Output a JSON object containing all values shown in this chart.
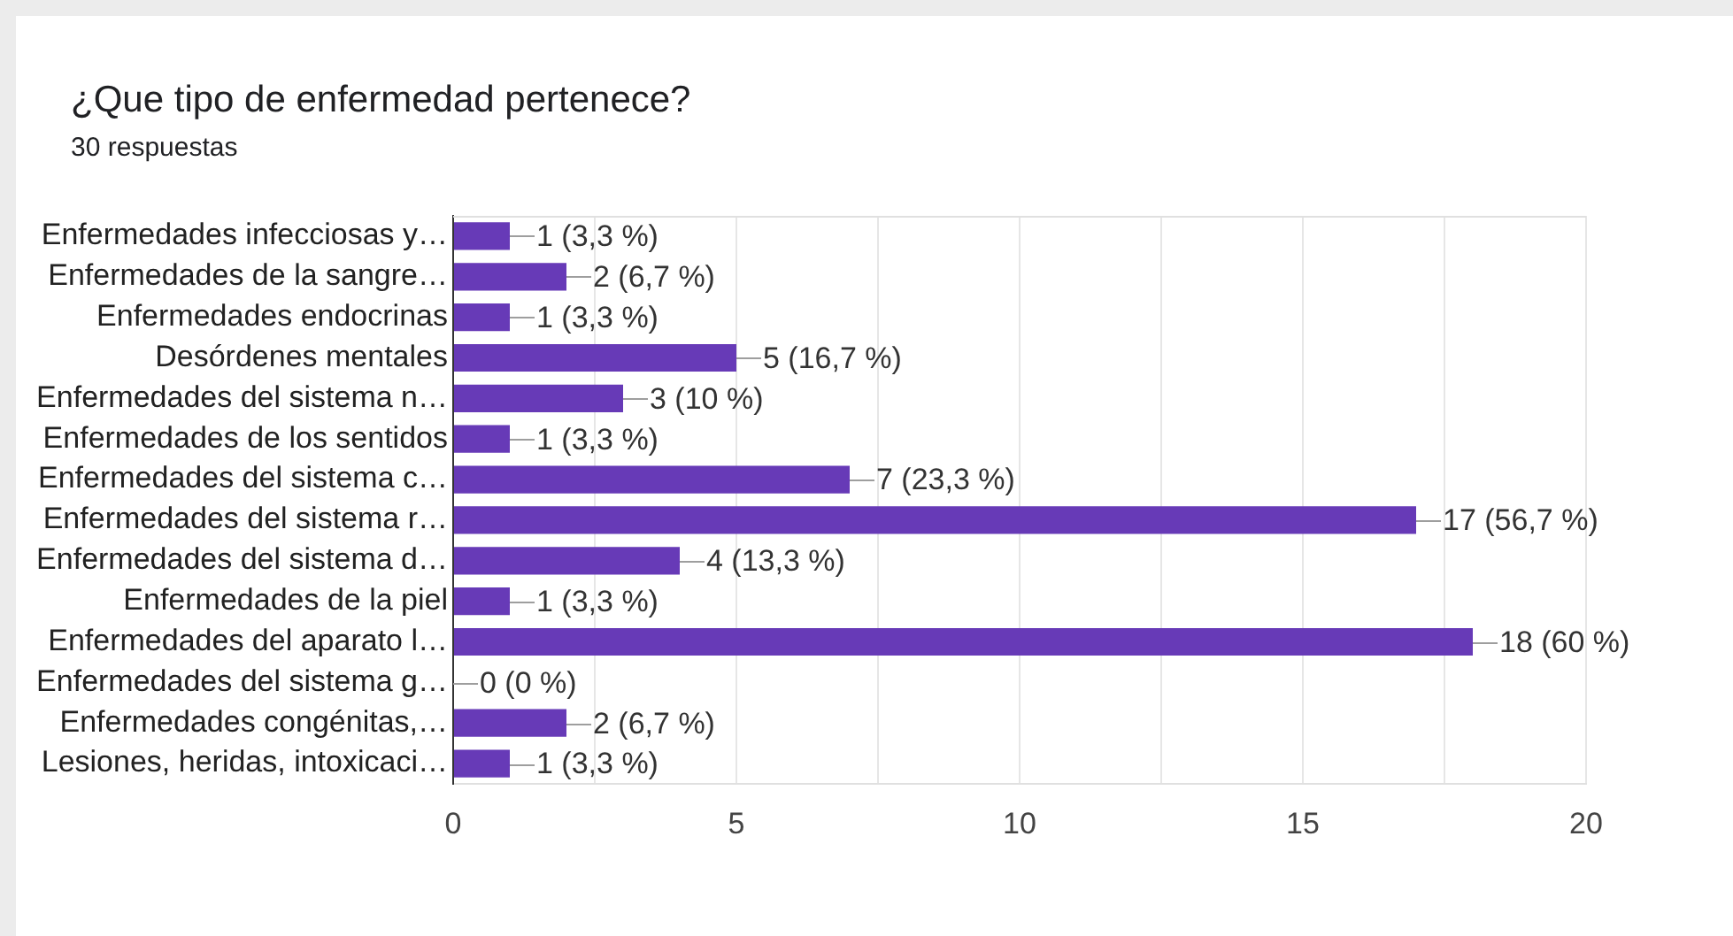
{
  "chart_data": {
    "type": "bar",
    "title": "¿Que tipo de enfermedad pertenece?",
    "subtitle": "30 respuestas",
    "orientation": "horizontal",
    "categories": [
      "Enfermedades infecciosas y…",
      "Enfermedades de la sangre…",
      "Enfermedades endocrinas",
      "Desórdenes mentales",
      "Enfermedades del sistema n…",
      "Enfermedades de los sentidos",
      "Enfermedades del sistema c…",
      "Enfermedades del sistema r…",
      "Enfermedades del sistema d…",
      "Enfermedades de la piel",
      "Enfermedades del aparato l…",
      "Enfermedades del sistema g…",
      "Enfermedades congénitas,…",
      "Lesiones, heridas, intoxicaci…"
    ],
    "values": [
      1,
      2,
      1,
      5,
      3,
      1,
      7,
      17,
      4,
      1,
      18,
      0,
      2,
      1
    ],
    "value_labels": [
      "1 (3,3 %)",
      "2 (6,7 %)",
      "1 (3,3 %)",
      "5 (16,7 %)",
      "3 (10 %)",
      "1 (3,3 %)",
      "7 (23,3 %)",
      "17 (56,7 %)",
      "4 (13,3 %)",
      "1 (3,3 %)",
      "18 (60 %)",
      "0 (0 %)",
      "2 (6,7 %)",
      "1 (3,3 %)"
    ],
    "color": "#673ab7",
    "xlim": [
      0,
      20
    ],
    "xticks": [
      0,
      {
        "value": 2.5,
        "label": null
      },
      5,
      {
        "value": 7.5,
        "label": null
      },
      10,
      {
        "value": 12.5,
        "label": null
      },
      15,
      {
        "value": 17.5,
        "label": null
      },
      20
    ],
    "grid": "x",
    "legend": false
  }
}
